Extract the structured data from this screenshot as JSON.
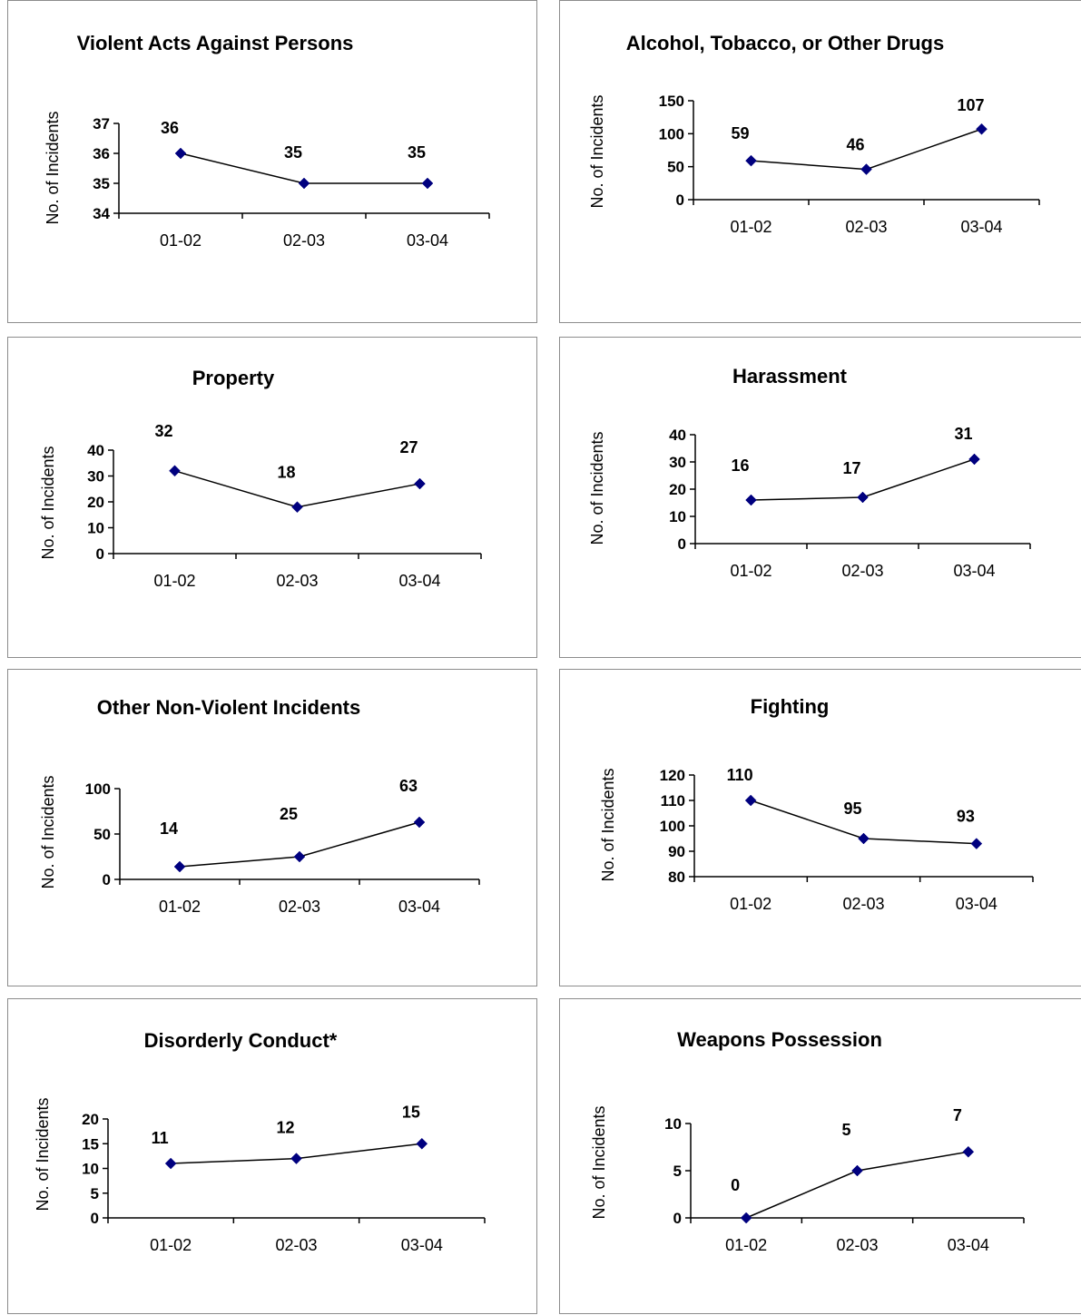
{
  "chart_data": [
    {
      "type": "line",
      "title": "Violent Acts Against Persons",
      "ylabel": "No. of Incidents",
      "categories": [
        "01-02",
        "02-03",
        "03-04"
      ],
      "values": [
        36,
        35,
        35
      ],
      "data_labels": [
        "36",
        "35",
        "35"
      ],
      "ylim": [
        34,
        37
      ],
      "yticks": [
        34,
        35,
        36,
        37
      ],
      "grid": false,
      "legend": "none",
      "marker_color": "#00007f",
      "line_color": "#000000"
    },
    {
      "type": "line",
      "title": "Alcohol, Tobacco, or Other Drugs",
      "ylabel": "No. of Incidents",
      "categories": [
        "01-02",
        "02-03",
        "03-04"
      ],
      "values": [
        59,
        46,
        107
      ],
      "data_labels": [
        "59",
        "46",
        "107"
      ],
      "ylim": [
        0,
        150
      ],
      "yticks": [
        0,
        50,
        100,
        150
      ],
      "grid": false,
      "legend": "none",
      "marker_color": "#00007f",
      "line_color": "#000000"
    },
    {
      "type": "line",
      "title": "Property",
      "ylabel": "No. of Incidents",
      "categories": [
        "01-02",
        "02-03",
        "03-04"
      ],
      "values": [
        32,
        18,
        27
      ],
      "data_labels": [
        "32",
        "18",
        "27"
      ],
      "ylim": [
        0,
        40
      ],
      "yticks": [
        0,
        10,
        20,
        30,
        40
      ],
      "grid": false,
      "legend": "none",
      "marker_color": "#00007f",
      "line_color": "#000000"
    },
    {
      "type": "line",
      "title": "Harassment",
      "ylabel": "No. of Incidents",
      "categories": [
        "01-02",
        "02-03",
        "03-04"
      ],
      "values": [
        16,
        17,
        31
      ],
      "data_labels": [
        "16",
        "17",
        "31"
      ],
      "ylim": [
        0,
        40
      ],
      "yticks": [
        0,
        10,
        20,
        30,
        40
      ],
      "grid": false,
      "legend": "none",
      "marker_color": "#00007f",
      "line_color": "#000000"
    },
    {
      "type": "line",
      "title": "Other Non-Violent Incidents",
      "ylabel": "No. of Incidents",
      "categories": [
        "01-02",
        "02-03",
        "03-04"
      ],
      "values": [
        14,
        25,
        63
      ],
      "data_labels": [
        "14",
        "25",
        "63"
      ],
      "ylim": [
        0,
        100
      ],
      "yticks": [
        0,
        50,
        100
      ],
      "grid": false,
      "legend": "none",
      "marker_color": "#00007f",
      "line_color": "#000000"
    },
    {
      "type": "line",
      "title": "Fighting",
      "ylabel": "No. of Incidents",
      "categories": [
        "01-02",
        "02-03",
        "03-04"
      ],
      "values": [
        110,
        95,
        93
      ],
      "data_labels": [
        "110",
        "95",
        "93"
      ],
      "ylim": [
        80,
        120
      ],
      "yticks": [
        80,
        90,
        100,
        110,
        120
      ],
      "grid": false,
      "legend": "none",
      "marker_color": "#00007f",
      "line_color": "#000000"
    },
    {
      "type": "line",
      "title": "Disorderly Conduct*",
      "ylabel": "No. of Incidents",
      "categories": [
        "01-02",
        "02-03",
        "03-04"
      ],
      "values": [
        11,
        12,
        15
      ],
      "data_labels": [
        "11",
        "12",
        "15"
      ],
      "ylim": [
        0,
        20
      ],
      "yticks": [
        0,
        5,
        10,
        15,
        20
      ],
      "grid": false,
      "legend": "none",
      "marker_color": "#00007f",
      "line_color": "#000000"
    },
    {
      "type": "line",
      "title": "Weapons Possession",
      "ylabel": "No. of Incidents",
      "categories": [
        "01-02",
        "02-03",
        "03-04"
      ],
      "values": [
        0,
        5,
        7
      ],
      "data_labels": [
        "0",
        "5",
        "7"
      ],
      "ylim": [
        0,
        10
      ],
      "yticks": [
        0,
        5,
        10
      ],
      "grid": false,
      "legend": "none",
      "marker_color": "#00007f",
      "line_color": "#000000"
    }
  ]
}
